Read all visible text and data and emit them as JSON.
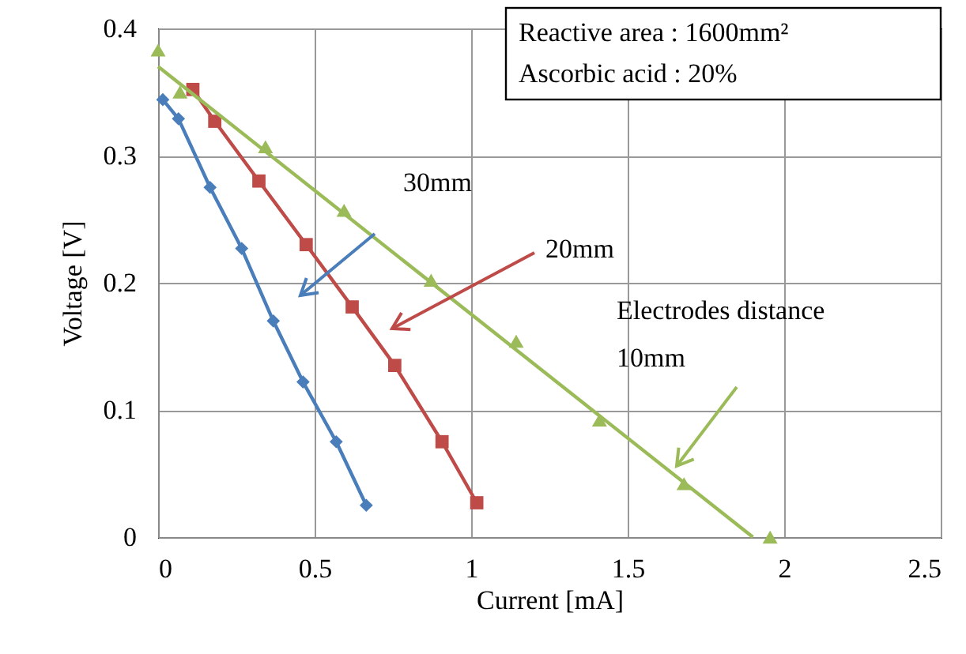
{
  "chart_data": {
    "type": "line",
    "xlabel": "Current [mA]",
    "ylabel": "Voltage [V]",
    "xlim": [
      0,
      2.5
    ],
    "xticks": [
      0,
      0.5,
      1,
      1.5,
      2,
      2.5
    ],
    "ylim": [
      0,
      0.4
    ],
    "yticks": [
      0,
      0.1,
      0.2,
      0.3,
      0.4
    ],
    "grid": true,
    "series": [
      {
        "color": "#4a7ebb",
        "marker": "diamond",
        "x": [
          0.015,
          0.065,
          0.166,
          0.267,
          0.368,
          0.463,
          0.569,
          0.665
        ],
        "values": [
          0.344,
          0.329,
          0.275,
          0.227,
          0.17,
          0.122,
          0.075,
          0.025
        ]
      },
      {
        "color": "#be4b48",
        "marker": "square",
        "x": [
          0.111,
          0.181,
          0.322,
          0.473,
          0.62,
          0.756,
          0.907,
          1.018
        ],
        "values": [
          0.352,
          0.327,
          0.28,
          0.23,
          0.181,
          0.135,
          0.075,
          0.027
        ]
      },
      {
        "color": "#9bbb59",
        "type": "scatter",
        "marker": "triangle",
        "x": [
          0,
          0.07,
          0.343,
          0.594,
          0.872,
          1.144,
          1.41,
          1.68,
          1.955
        ],
        "values": [
          0.383,
          0.35,
          0.307,
          0.257,
          0.202,
          0.154,
          0.092,
          0.042,
          0
        ]
      },
      {
        "color": "#9bbb59",
        "type": "line",
        "marker": "none",
        "x": [
          0,
          1.9
        ],
        "values": [
          0.37,
          0
        ]
      }
    ],
    "annotations": [
      "30mm",
      "20mm",
      "Electrodes distance\n10mm",
      "Reactive area : 1600mm²\nAscorbic acid : 20%"
    ]
  }
}
